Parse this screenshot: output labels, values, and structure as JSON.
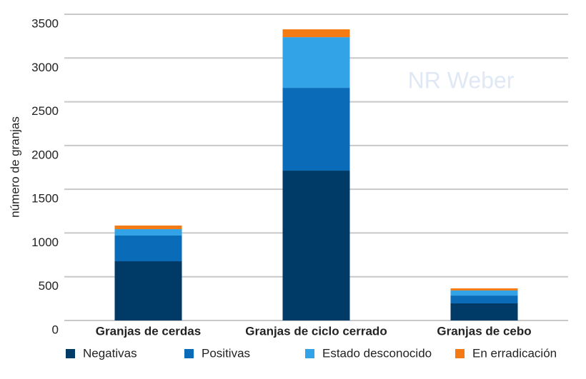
{
  "chart_data": {
    "type": "stacked_bar",
    "watermark": "NR Weber",
    "y_label": "número de granjas",
    "categories": [
      "Granjas de cerdas",
      "Granjas de ciclo cerrado",
      "Granjas de cebo"
    ],
    "series": [
      {
        "name": "Negativas",
        "color": "#003a66",
        "values": [
          677,
          1713,
          196
        ]
      },
      {
        "name": "Positivas",
        "color": "#0a6bb8",
        "values": [
          294,
          946,
          89
        ]
      },
      {
        "name": "Estado desconocido",
        "color": "#33a3e8",
        "values": [
          73,
          579,
          58
        ]
      },
      {
        "name": "En erradicación",
        "color": "#f47b14",
        "values": [
          41,
          90,
          24
        ]
      }
    ],
    "ylim": [
      0,
      3500
    ],
    "yticks": [
      0,
      500,
      1000,
      1500,
      2000,
      2500,
      3000,
      3500
    ],
    "grid": true
  }
}
